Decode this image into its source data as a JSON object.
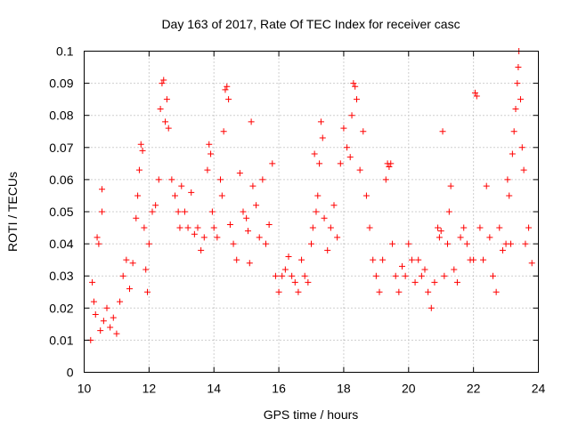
{
  "chart_data": {
    "type": "scatter",
    "title": "Day 163 of 2017, Rate Of TEC Index for receiver casc",
    "xlabel": "GPS time / hours",
    "ylabel": "ROTI / TECUs",
    "xlim": [
      10,
      24
    ],
    "ylim": [
      0,
      0.1
    ],
    "x_ticks": [
      10,
      12,
      14,
      16,
      18,
      20,
      22,
      24
    ],
    "x_tick_labels": [
      "10",
      "12",
      "14",
      "16",
      "18",
      "20",
      "22",
      "24"
    ],
    "y_ticks": [
      0,
      0.01,
      0.02,
      0.03,
      0.04,
      0.05,
      0.06,
      0.07,
      0.08,
      0.09,
      0.1
    ],
    "y_tick_labels": [
      "0",
      "0.01",
      "0.02",
      "0.03",
      "0.04",
      "0.05",
      "0.06",
      "0.07",
      "0.08",
      "0.09",
      "0.1"
    ],
    "grid": true,
    "marker": "+",
    "color": "#ff0000",
    "series": [
      {
        "name": "ROTI",
        "points": [
          [
            10.2,
            0.01
          ],
          [
            10.25,
            0.028
          ],
          [
            10.3,
            0.022
          ],
          [
            10.35,
            0.018
          ],
          [
            10.4,
            0.042
          ],
          [
            10.45,
            0.04
          ],
          [
            10.5,
            0.013
          ],
          [
            10.55,
            0.057
          ],
          [
            10.55,
            0.05
          ],
          [
            10.6,
            0.016
          ],
          [
            10.7,
            0.02
          ],
          [
            10.8,
            0.014
          ],
          [
            10.9,
            0.017
          ],
          [
            11.0,
            0.012
          ],
          [
            11.1,
            0.022
          ],
          [
            11.2,
            0.03
          ],
          [
            11.3,
            0.035
          ],
          [
            11.4,
            0.026
          ],
          [
            11.5,
            0.034
          ],
          [
            11.6,
            0.048
          ],
          [
            11.65,
            0.055
          ],
          [
            11.7,
            0.063
          ],
          [
            11.75,
            0.071
          ],
          [
            11.8,
            0.069
          ],
          [
            11.85,
            0.045
          ],
          [
            11.9,
            0.032
          ],
          [
            11.95,
            0.025
          ],
          [
            12.0,
            0.04
          ],
          [
            12.1,
            0.05
          ],
          [
            12.2,
            0.052
          ],
          [
            12.3,
            0.06
          ],
          [
            12.35,
            0.082
          ],
          [
            12.4,
            0.09
          ],
          [
            12.45,
            0.091
          ],
          [
            12.5,
            0.078
          ],
          [
            12.55,
            0.085
          ],
          [
            12.6,
            0.076
          ],
          [
            12.7,
            0.06
          ],
          [
            12.8,
            0.055
          ],
          [
            12.9,
            0.05
          ],
          [
            12.95,
            0.045
          ],
          [
            13.0,
            0.058
          ],
          [
            13.1,
            0.05
          ],
          [
            13.2,
            0.045
          ],
          [
            13.3,
            0.056
          ],
          [
            13.4,
            0.043
          ],
          [
            13.5,
            0.045
          ],
          [
            13.6,
            0.038
          ],
          [
            13.7,
            0.042
          ],
          [
            13.8,
            0.063
          ],
          [
            13.85,
            0.071
          ],
          [
            13.9,
            0.068
          ],
          [
            13.95,
            0.05
          ],
          [
            14.0,
            0.045
          ],
          [
            14.1,
            0.042
          ],
          [
            14.2,
            0.06
          ],
          [
            14.25,
            0.055
          ],
          [
            14.3,
            0.075
          ],
          [
            14.35,
            0.088
          ],
          [
            14.4,
            0.089
          ],
          [
            14.45,
            0.085
          ],
          [
            14.5,
            0.046
          ],
          [
            14.6,
            0.04
          ],
          [
            14.7,
            0.035
          ],
          [
            14.8,
            0.062
          ],
          [
            14.9,
            0.05
          ],
          [
            15.0,
            0.048
          ],
          [
            15.05,
            0.044
          ],
          [
            15.1,
            0.034
          ],
          [
            15.15,
            0.078
          ],
          [
            15.2,
            0.058
          ],
          [
            15.3,
            0.052
          ],
          [
            15.4,
            0.042
          ],
          [
            15.5,
            0.06
          ],
          [
            15.6,
            0.04
          ],
          [
            15.7,
            0.046
          ],
          [
            15.8,
            0.065
          ],
          [
            15.9,
            0.03
          ],
          [
            16.0,
            0.025
          ],
          [
            16.1,
            0.03
          ],
          [
            16.2,
            0.032
          ],
          [
            16.3,
            0.036
          ],
          [
            16.4,
            0.03
          ],
          [
            16.5,
            0.028
          ],
          [
            16.6,
            0.025
          ],
          [
            16.7,
            0.035
          ],
          [
            16.8,
            0.03
          ],
          [
            16.9,
            0.028
          ],
          [
            17.0,
            0.04
          ],
          [
            17.05,
            0.045
          ],
          [
            17.1,
            0.068
          ],
          [
            17.15,
            0.05
          ],
          [
            17.2,
            0.055
          ],
          [
            17.25,
            0.065
          ],
          [
            17.3,
            0.078
          ],
          [
            17.35,
            0.073
          ],
          [
            17.4,
            0.048
          ],
          [
            17.5,
            0.038
          ],
          [
            17.6,
            0.045
          ],
          [
            17.7,
            0.052
          ],
          [
            17.8,
            0.042
          ],
          [
            17.9,
            0.065
          ],
          [
            18.0,
            0.076
          ],
          [
            18.1,
            0.07
          ],
          [
            18.2,
            0.067
          ],
          [
            18.25,
            0.08
          ],
          [
            18.3,
            0.09
          ],
          [
            18.35,
            0.089
          ],
          [
            18.4,
            0.085
          ],
          [
            18.5,
            0.063
          ],
          [
            18.6,
            0.075
          ],
          [
            18.7,
            0.055
          ],
          [
            18.8,
            0.045
          ],
          [
            18.9,
            0.035
          ],
          [
            19.0,
            0.03
          ],
          [
            19.1,
            0.025
          ],
          [
            19.2,
            0.035
          ],
          [
            19.3,
            0.06
          ],
          [
            19.35,
            0.065
          ],
          [
            19.4,
            0.064
          ],
          [
            19.45,
            0.065
          ],
          [
            19.5,
            0.04
          ],
          [
            19.6,
            0.03
          ],
          [
            19.7,
            0.025
          ],
          [
            19.8,
            0.033
          ],
          [
            19.9,
            0.03
          ],
          [
            20.0,
            0.04
          ],
          [
            20.1,
            0.035
          ],
          [
            20.2,
            0.028
          ],
          [
            20.3,
            0.035
          ],
          [
            20.4,
            0.03
          ],
          [
            20.5,
            0.032
          ],
          [
            20.6,
            0.025
          ],
          [
            20.7,
            0.02
          ],
          [
            20.8,
            0.028
          ],
          [
            20.9,
            0.045
          ],
          [
            20.95,
            0.042
          ],
          [
            21.0,
            0.044
          ],
          [
            21.05,
            0.075
          ],
          [
            21.1,
            0.03
          ],
          [
            21.2,
            0.04
          ],
          [
            21.25,
            0.05
          ],
          [
            21.3,
            0.058
          ],
          [
            21.4,
            0.032
          ],
          [
            21.5,
            0.028
          ],
          [
            21.6,
            0.042
          ],
          [
            21.7,
            0.045
          ],
          [
            21.8,
            0.04
          ],
          [
            21.9,
            0.035
          ],
          [
            22.0,
            0.035
          ],
          [
            22.05,
            0.087
          ],
          [
            22.1,
            0.086
          ],
          [
            22.2,
            0.045
          ],
          [
            22.3,
            0.035
          ],
          [
            22.4,
            0.058
          ],
          [
            22.5,
            0.042
          ],
          [
            22.6,
            0.03
          ],
          [
            22.7,
            0.025
          ],
          [
            22.8,
            0.045
          ],
          [
            22.9,
            0.038
          ],
          [
            23.0,
            0.04
          ],
          [
            23.05,
            0.06
          ],
          [
            23.1,
            0.055
          ],
          [
            23.15,
            0.04
          ],
          [
            23.2,
            0.068
          ],
          [
            23.25,
            0.075
          ],
          [
            23.3,
            0.082
          ],
          [
            23.35,
            0.09
          ],
          [
            23.38,
            0.095
          ],
          [
            23.4,
            0.1
          ],
          [
            23.45,
            0.085
          ],
          [
            23.5,
            0.07
          ],
          [
            23.55,
            0.063
          ],
          [
            23.6,
            0.04
          ],
          [
            23.7,
            0.045
          ],
          [
            23.8,
            0.034
          ]
        ]
      }
    ]
  }
}
